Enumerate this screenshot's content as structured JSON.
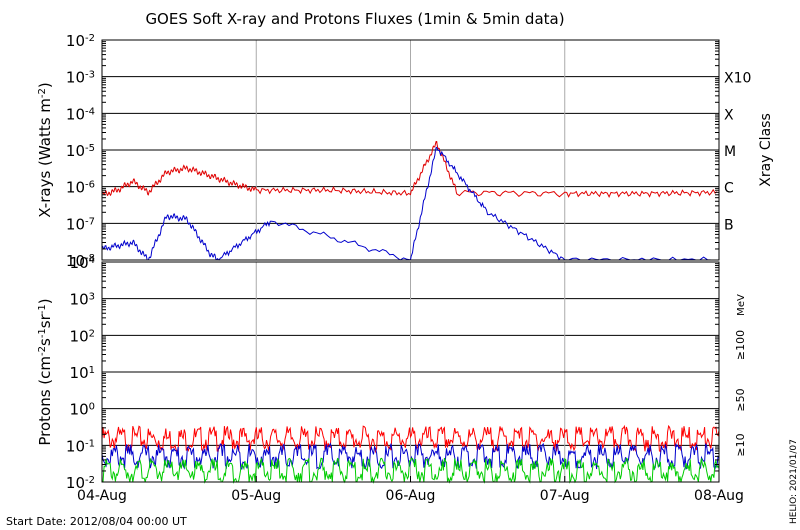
{
  "chart_data": [
    {
      "type": "line",
      "title": "GOES Soft X-ray and Protons Fluxes   (1min & 5min data)",
      "ylabel": "X-rays (Watts m",
      "ylabel_sup": "-2",
      "ylabel_close": ")",
      "yscale": "log",
      "ylim": [
        1e-08,
        0.01
      ],
      "yticks": [
        {
          "base": "10",
          "exp": "-8"
        },
        {
          "base": "10",
          "exp": "-7"
        },
        {
          "base": "10",
          "exp": "-6"
        },
        {
          "base": "10",
          "exp": "-5"
        },
        {
          "base": "10",
          "exp": "-4"
        },
        {
          "base": "10",
          "exp": "-3"
        },
        {
          "base": "10",
          "exp": "-2"
        }
      ],
      "right_axis_label": "Xray Class",
      "class_labels": [
        {
          "label": "B",
          "at": 1e-07
        },
        {
          "label": "C",
          "at": 1e-06
        },
        {
          "label": "M",
          "at": 1e-05
        },
        {
          "label": "X",
          "at": 0.0001
        },
        {
          "label": "X10",
          "at": 0.001
        }
      ],
      "series": [
        {
          "color": "#e00000",
          "points": [
            [
              0,
              6e-07
            ],
            [
              0.1,
              8e-07
            ],
            [
              0.2,
              1.4e-06
            ],
            [
              0.3,
              7e-07
            ],
            [
              0.42,
              2.5e-06
            ],
            [
              0.55,
              3.2e-06
            ],
            [
              0.7,
              2e-06
            ],
            [
              0.85,
              1.2e-06
            ],
            [
              1,
              8e-07
            ],
            [
              1.5,
              8e-07
            ],
            [
              2,
              6.5e-07
            ],
            [
              2.17,
              1.6e-05
            ],
            [
              2.3,
              7e-07
            ],
            [
              3,
              6.5e-07
            ],
            [
              3.5,
              6.5e-07
            ],
            [
              4,
              7e-07
            ]
          ]
        },
        {
          "color": "#0000cc",
          "points": [
            [
              0,
              2e-08
            ],
            [
              0.2,
              3e-08
            ],
            [
              0.3,
              1e-08
            ],
            [
              0.42,
              1.6e-07
            ],
            [
              0.55,
              1.3e-07
            ],
            [
              0.7,
              1.5e-08
            ],
            [
              0.75,
              1e-08
            ],
            [
              1.1,
              1.2e-07
            ],
            [
              2,
              1e-08
            ],
            [
              2.17,
              1.2e-05
            ],
            [
              2.5,
              2e-07
            ],
            [
              3,
              1e-08
            ],
            [
              4,
              1e-08
            ]
          ]
        }
      ]
    },
    {
      "type": "line",
      "ylabel": "Protons (cm",
      "ylabel_sup1": "-2",
      "ylabel_mid": "s",
      "ylabel_sup2": "-1",
      "ylabel_mid2": "sr",
      "ylabel_sup3": "-1",
      "ylabel_close": ")",
      "yscale": "log",
      "ylim": [
        0.01,
        10000
      ],
      "yticks": [
        {
          "base": "10",
          "exp": "-2"
        },
        {
          "base": "10",
          "exp": "-1"
        },
        {
          "base": "10",
          "exp": "0"
        },
        {
          "base": "10",
          "exp": "1"
        },
        {
          "base": "10",
          "exp": "2"
        },
        {
          "base": "10",
          "exp": "3"
        },
        {
          "base": "10",
          "exp": "4"
        }
      ],
      "threshold": 10,
      "unit_label": "MeV",
      "series": [
        {
          "name": "≥10",
          "color": "#ff0000",
          "level": 0.15
        },
        {
          "name": "≥50",
          "color": "#0000cc",
          "level": 0.05
        },
        {
          "name": "≥100",
          "color": "#00cc00",
          "level": 0.02
        }
      ]
    }
  ],
  "xticks": [
    "04-Aug",
    "05-Aug",
    "06-Aug",
    "07-Aug",
    "08-Aug"
  ],
  "xlim": [
    0,
    4
  ],
  "start_date": "Start Date: 2012/08/04 00:00 UT",
  "side_note": "HELIO: 2021/01/07",
  "colors": {
    "frame": "#000000",
    "grid_day": "#aaaaaa"
  }
}
